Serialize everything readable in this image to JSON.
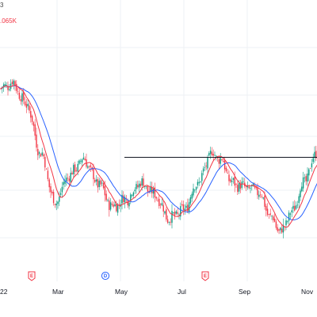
{
  "legend": {
    "top_text": "3",
    "mid_text": ".065K"
  },
  "x_axis_labels": [
    "22",
    "Mar",
    "May",
    "Jul",
    "Sep",
    "Nov"
  ],
  "events": [
    {
      "letter": "E",
      "kind": "earnings"
    },
    {
      "letter": "D",
      "kind": "dividend"
    },
    {
      "letter": "E",
      "kind": "earnings"
    }
  ],
  "colors": {
    "up": "#089981",
    "down": "#f23645",
    "ma_fast": "#f23645",
    "ma_slow": "#2962ff",
    "resistance": "#131722",
    "grid": "#eef0f4",
    "dividend": "#2962ff"
  },
  "chart_data": {
    "type": "candlestick",
    "title": "",
    "xlabel": "",
    "ylabel": "",
    "x_tick_labels": [
      "22",
      "Mar",
      "May",
      "Jul",
      "Sep",
      "Nov"
    ],
    "grid": true,
    "overlays": [
      "fast moving average (red)",
      "slow moving average (blue)",
      "horizontal resistance line"
    ],
    "trend_anchors_relative_price": [
      [
        0,
        0.88
      ],
      [
        8,
        0.91
      ],
      [
        18,
        0.8
      ],
      [
        28,
        0.55
      ],
      [
        38,
        0.3
      ],
      [
        48,
        0.44
      ],
      [
        58,
        0.52
      ],
      [
        68,
        0.4
      ],
      [
        78,
        0.28
      ],
      [
        88,
        0.32
      ],
      [
        98,
        0.4
      ],
      [
        108,
        0.34
      ],
      [
        118,
        0.22
      ],
      [
        128,
        0.26
      ],
      [
        138,
        0.4
      ],
      [
        148,
        0.55
      ],
      [
        154,
        0.52
      ],
      [
        162,
        0.4
      ],
      [
        170,
        0.38
      ],
      [
        180,
        0.36
      ],
      [
        190,
        0.22
      ],
      [
        196,
        0.15
      ],
      [
        204,
        0.25
      ],
      [
        212,
        0.4
      ],
      [
        222,
        0.56
      ]
    ],
    "resistance_relative_price": 0.53
  }
}
